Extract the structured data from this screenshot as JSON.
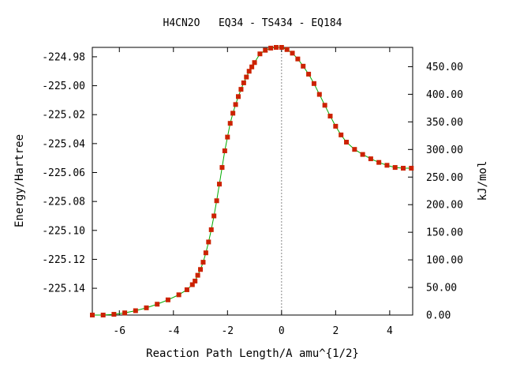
{
  "chart_data": {
    "type": "scatter",
    "title": "H4CN2O   EQ34 - TS434 - EQ184",
    "xlabel": "Reaction Path Length/A amu^{1/2}",
    "ylabel": "Energy/Hartree",
    "y2label": "kJ/mol",
    "xlim": [
      -7.0,
      4.85
    ],
    "ylim": [
      -225.1585,
      -224.9735
    ],
    "y2lim": [
      0.0,
      485.0
    ],
    "x_ticks": [
      -6,
      -4,
      -2,
      0,
      2,
      4
    ],
    "x_tick_labels": [
      "-6",
      "-4",
      "-2",
      "0",
      "2",
      "4"
    ],
    "y_ticks": [
      -224.98,
      -225.0,
      -225.02,
      -225.04,
      -225.06,
      -225.08,
      -225.1,
      -225.12,
      -225.14
    ],
    "y_tick_labels": [
      "-224.98",
      "-225.00",
      "-225.02",
      "-225.04",
      "-225.06",
      "-225.08",
      "-225.10",
      "-225.12",
      "-225.14"
    ],
    "y2_ticks": [
      0,
      50,
      100,
      150,
      200,
      250,
      300,
      350,
      400,
      450
    ],
    "y2_tick_labels": [
      "0.00",
      "50.00",
      "100.00",
      "150.00",
      "200.00",
      "250.00",
      "300.00",
      "350.00",
      "400.00",
      "450.00"
    ],
    "ts_marker_x": 0,
    "grid": false,
    "line_color": "#00aa00",
    "marker_color": "#cc2200",
    "series": [
      {
        "x": [
          -7.0,
          -6.6,
          -6.2,
          -5.8,
          -5.4,
          -5.0,
          -4.6,
          -4.2,
          -3.8,
          -3.5,
          -3.3,
          -3.2,
          -3.1,
          -3.0,
          -2.9,
          -2.8,
          -2.7,
          -2.6,
          -2.5,
          -2.4,
          -2.3,
          -2.2,
          -2.1,
          -2.0,
          -1.9,
          -1.8,
          -1.7,
          -1.6,
          -1.5,
          -1.4,
          -1.3,
          -1.2,
          -1.1,
          -1.0,
          -0.8,
          -0.6,
          -0.4,
          -0.2,
          0.0,
          0.2,
          0.4,
          0.6,
          0.8,
          1.0,
          1.2,
          1.4,
          1.6,
          1.8,
          2.0,
          2.2,
          2.4,
          2.7,
          3.0,
          3.3,
          3.6,
          3.9,
          4.2,
          4.5,
          4.8
        ],
        "y": [
          -225.1585,
          -225.1585,
          -225.158,
          -225.157,
          -225.1555,
          -225.1535,
          -225.151,
          -225.148,
          -225.1445,
          -225.141,
          -225.1375,
          -225.135,
          -225.131,
          -225.127,
          -225.122,
          -225.1155,
          -225.108,
          -225.0995,
          -225.09,
          -225.0795,
          -225.068,
          -225.0565,
          -225.045,
          -225.0355,
          -225.026,
          -225.019,
          -225.013,
          -225.0075,
          -225.0025,
          -224.998,
          -224.994,
          -224.99,
          -224.987,
          -224.984,
          -224.978,
          -224.9755,
          -224.974,
          -224.9735,
          -224.9735,
          -224.975,
          -224.9775,
          -224.9815,
          -224.9865,
          -224.992,
          -224.9985,
          -225.006,
          -225.0135,
          -225.021,
          -225.028,
          -225.034,
          -225.039,
          -225.044,
          -225.0475,
          -225.0505,
          -225.053,
          -225.055,
          -225.0565,
          -225.057,
          -225.057
        ]
      }
    ]
  }
}
